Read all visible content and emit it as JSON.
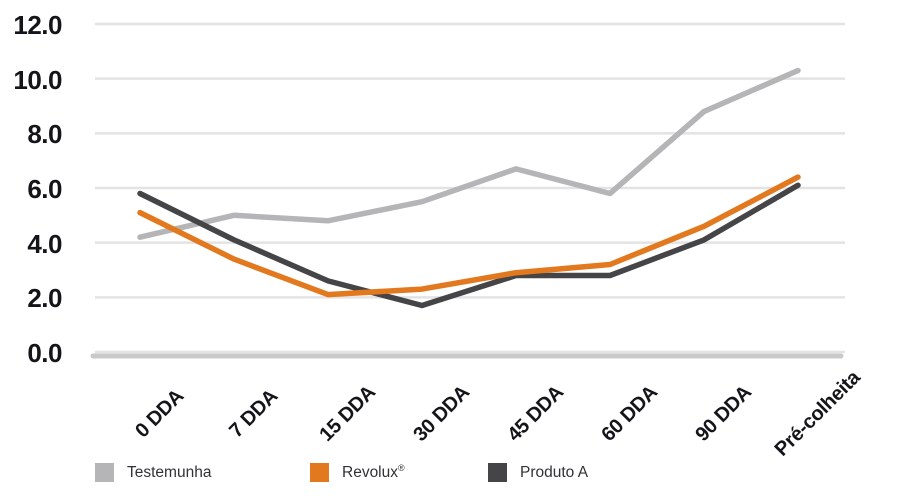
{
  "chart_data": {
    "type": "line",
    "categories": [
      "0 DDA",
      "7 DDA",
      "15 DDA",
      "30 DDA",
      "45 DDA",
      "60 DDA",
      "90 DDA",
      "Pré-colheita"
    ],
    "series": [
      {
        "name": "Testemunha",
        "color": "#b5b5b7",
        "values": [
          4.2,
          5.0,
          4.8,
          5.5,
          6.7,
          5.8,
          8.8,
          10.3
        ]
      },
      {
        "name": "Revolux®",
        "color": "#e2791f",
        "values": [
          5.1,
          3.4,
          2.1,
          2.3,
          2.9,
          3.2,
          4.6,
          6.4
        ]
      },
      {
        "name": "Produto A",
        "color": "#454548",
        "values": [
          5.8,
          4.1,
          2.6,
          1.7,
          2.8,
          2.8,
          4.1,
          6.1
        ]
      }
    ],
    "title": "",
    "xlabel": "",
    "ylabel": "",
    "ylim": [
      0,
      12
    ],
    "ytick_step": 2,
    "ytick_labels": [
      "12.0",
      "10.0",
      "8.0",
      "6.0",
      "4.0",
      "2.0",
      "0.0"
    ],
    "grid": true,
    "legend_position": "bottom"
  },
  "legend": {
    "items": [
      {
        "label": "Testemunha",
        "sup": ""
      },
      {
        "label": "Revolux",
        "sup": "®"
      },
      {
        "label": "Produto A",
        "sup": ""
      }
    ]
  },
  "colors": {
    "gridline": "#e3e3e4",
    "axis_baseline": "#c9c9ca",
    "tick_text": "#141419",
    "legend_text": "#323236",
    "background": "#ffffff"
  }
}
